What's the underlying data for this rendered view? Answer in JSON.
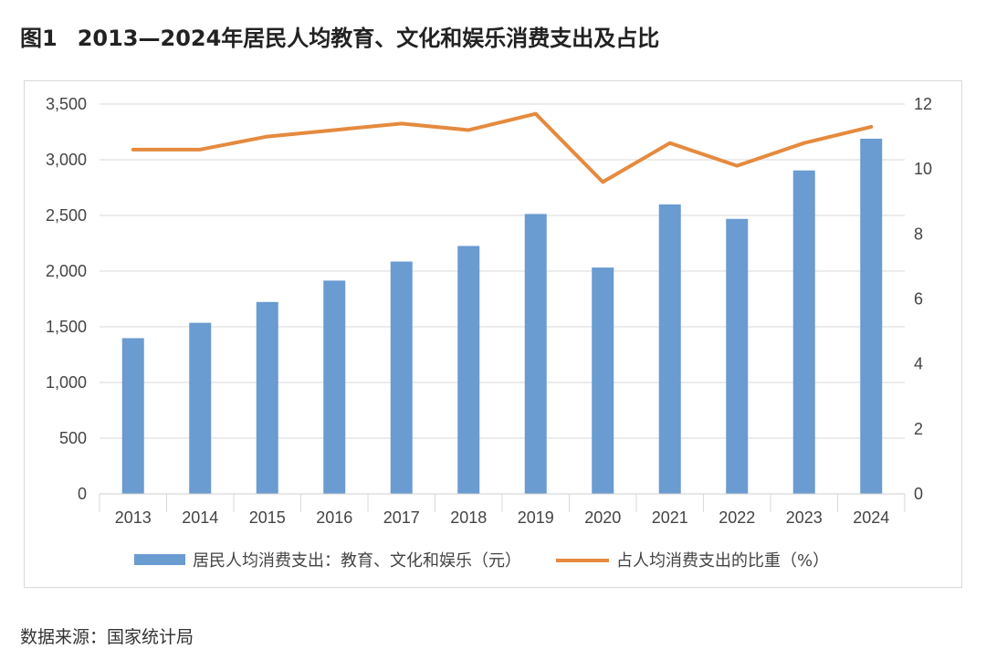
{
  "figure": {
    "number": "图1",
    "title": "2013—2024年居民人均教育、文化和娱乐消费支出及占比"
  },
  "source": "数据来源：国家统计局",
  "chart_data": {
    "type": "bar",
    "categories": [
      "2013",
      "2014",
      "2015",
      "2016",
      "2017",
      "2018",
      "2019",
      "2020",
      "2021",
      "2022",
      "2023",
      "2024"
    ],
    "series": [
      {
        "name": "居民人均消费支出：教育、文化和娱乐（元）",
        "type": "bar",
        "axis": "left",
        "color": "#6a9bd1",
        "values": [
          1398,
          1536,
          1723,
          1915,
          2086,
          2226,
          2513,
          2032,
          2599,
          2469,
          2904,
          3189
        ]
      },
      {
        "name": "占人均消费支出的比重（%）",
        "type": "line",
        "axis": "right",
        "color": "#e58a3e",
        "values": [
          10.6,
          10.6,
          11.0,
          11.2,
          11.4,
          11.2,
          11.7,
          9.6,
          10.8,
          10.1,
          10.8,
          11.3
        ]
      }
    ],
    "y_left": {
      "ylim": [
        0,
        3500
      ],
      "ticks": [
        "0",
        "500",
        "1,000",
        "1,500",
        "2,000",
        "2,500",
        "3,000",
        "3,500"
      ]
    },
    "y_right": {
      "ylim": [
        0,
        12
      ],
      "ticks": [
        "0",
        "2",
        "4",
        "6",
        "8",
        "10",
        "12"
      ]
    },
    "grid": true,
    "legend_position": "bottom"
  }
}
